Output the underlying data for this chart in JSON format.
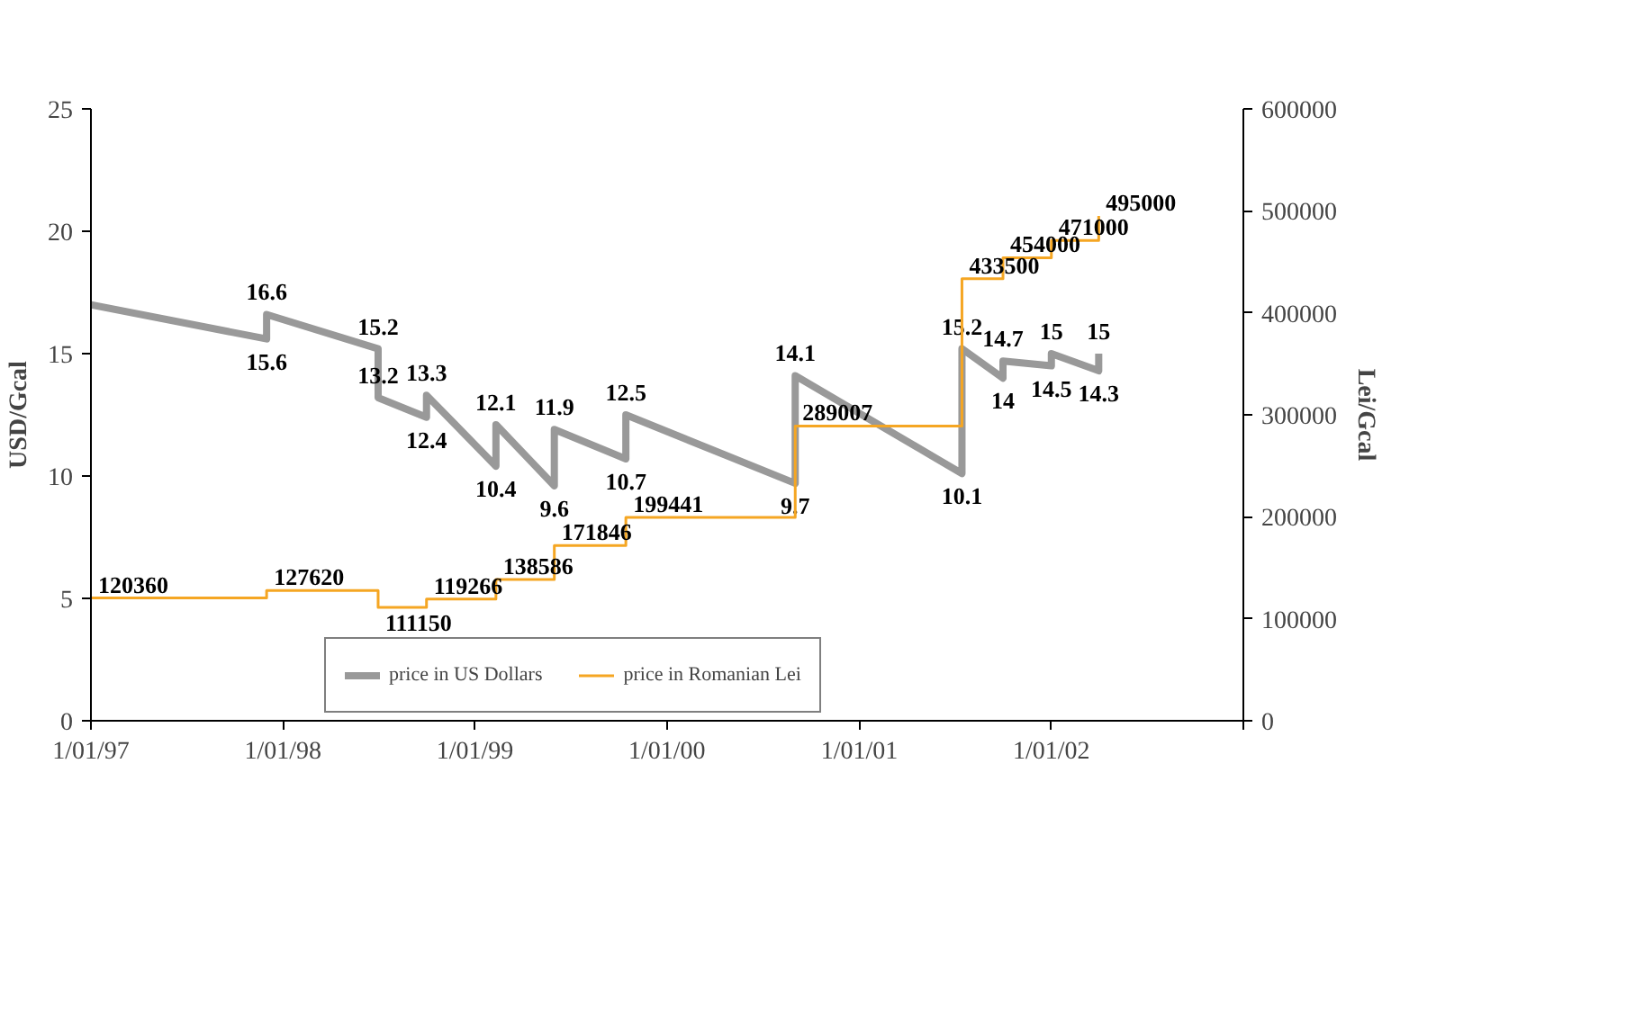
{
  "chart_data": {
    "type": "line",
    "xlim": [
      "1997-01-01",
      "2003-01-01"
    ],
    "xticks": [
      {
        "value": "1997-01-01",
        "label": "1/01/97"
      },
      {
        "value": "1998-01-01",
        "label": "1/01/98"
      },
      {
        "value": "1999-01-01",
        "label": "1/01/99"
      },
      {
        "value": "2000-01-01",
        "label": "1/01/00"
      },
      {
        "value": "2001-01-01",
        "label": "1/01/01"
      },
      {
        "value": "2002-01-01",
        "label": "1/01/02"
      },
      {
        "value": "2003-01-01",
        "label": null
      }
    ],
    "ylim": [
      0,
      25
    ],
    "yticks": [
      0,
      5,
      10,
      15,
      20,
      25
    ],
    "y2lim": [
      0,
      600000
    ],
    "y2ticks": [
      0,
      100000,
      200000,
      300000,
      400000,
      500000,
      600000
    ],
    "ylabel": "USD/Gcal",
    "y2label": "Lei/Gcal",
    "legend": "bottom",
    "grid": false,
    "series": [
      {
        "name": "price in US Dollars",
        "color": "#999999",
        "x": [
          "1997-01-01",
          "1997-12-01",
          "1997-12-01",
          "1998-07-01",
          "1998-07-01",
          "1998-10-01",
          "1998-10-01",
          "1999-02-10",
          "1999-02-10",
          "1999-06-01",
          "1999-06-01",
          "1999-10-15",
          "1999-10-15",
          "2000-09-01",
          "2000-09-01",
          "2001-07-15",
          "2001-07-15",
          "2001-10-01",
          "2001-10-01",
          "2002-01-01",
          "2002-01-01",
          "2002-04-01",
          "2002-04-01"
        ],
        "values": [
          17,
          15.6,
          16.6,
          15.2,
          13.2,
          12.4,
          13.3,
          10.4,
          12.1,
          9.6,
          11.9,
          10.7,
          12.5,
          9.7,
          14.1,
          10.1,
          15.2,
          14,
          14.7,
          14.5,
          15,
          14.3,
          15
        ],
        "value_labels": [
          null,
          "15.6",
          "16.6",
          "15.2",
          "13.2",
          "12.4",
          "13.3",
          "10.4",
          "12.1",
          "9.6",
          "11.9",
          "10.7",
          "12.5",
          "9.7",
          "14.1",
          "10.1",
          "15.2",
          "14",
          "14.7",
          "14.5",
          "15",
          "14.3",
          "15"
        ]
      },
      {
        "name": "price in Romanian Lei",
        "type": "step",
        "axis": "y2",
        "color": "#f5a623",
        "x": [
          "1997-01-01",
          "1997-12-01",
          "1998-07-01",
          "1998-10-01",
          "1999-02-10",
          "1999-06-01",
          "1999-10-15",
          "2000-09-01",
          "2001-07-15",
          "2001-10-01",
          "2002-01-01",
          "2002-04-01"
        ],
        "values": [
          120360,
          127620,
          111150,
          119266,
          138586,
          171846,
          199441,
          289007,
          433500,
          454000,
          471000,
          495000
        ],
        "data_labels": true
      }
    ]
  }
}
